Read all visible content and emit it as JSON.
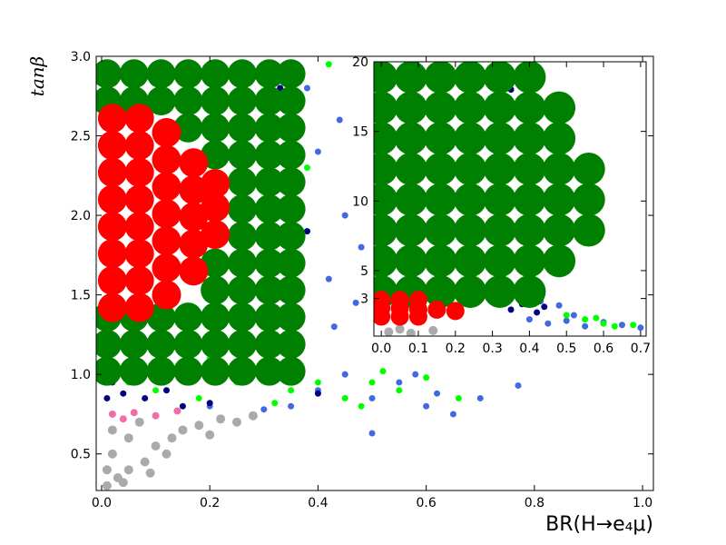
{
  "chart_data": [
    {
      "type": "scatter",
      "xlabel": "BR(H→e₄μ)",
      "ylabel": "tanβ",
      "xlim": [
        -0.01,
        1.02
      ],
      "ylim": [
        0.27,
        3.0
      ],
      "xticks": [
        {
          "value": 0.0,
          "label": "0.0"
        },
        {
          "value": 0.2,
          "label": "0.2"
        },
        {
          "value": 0.4,
          "label": "0.4"
        },
        {
          "value": 0.6,
          "label": "0.6"
        },
        {
          "value": 0.8,
          "label": "0.8"
        },
        {
          "value": 1.0,
          "label": "1.0"
        }
      ],
      "yticks": [
        0.5,
        {
          "value": 1.0,
          "label": "1.0"
        },
        1.5,
        {
          "value": 2.0,
          "label": "2.0"
        },
        2.5,
        {
          "value": 3.0,
          "label": "3.0"
        }
      ],
      "series": [
        {
          "color": "#aaaaaa",
          "x": [
            0.01,
            0.03,
            0.05,
            0.02,
            0.08,
            0.1,
            0.05,
            0.13,
            0.15,
            0.18,
            0.22,
            0.25,
            0.2,
            0.12,
            0.02,
            0.07,
            0.28,
            0.01,
            0.04,
            0.09
          ],
          "y": [
            0.3,
            0.35,
            0.4,
            0.5,
            0.45,
            0.55,
            0.6,
            0.6,
            0.65,
            0.68,
            0.72,
            0.7,
            0.62,
            0.5,
            0.65,
            0.7,
            0.74,
            0.4,
            0.32,
            0.38
          ]
        },
        {
          "color": "#ee6fa8",
          "x": [
            0.02,
            0.06,
            0.1,
            0.14,
            0.04
          ],
          "y": [
            0.75,
            0.76,
            0.74,
            0.77,
            0.72
          ]
        },
        {
          "color": "#4169e1",
          "x": [
            0.35,
            0.4,
            0.45,
            0.5,
            0.55,
            0.6,
            0.65,
            0.7,
            0.77,
            0.5,
            0.42,
            0.45,
            0.4,
            0.43,
            0.38,
            0.44,
            0.48,
            0.3,
            0.2,
            0.58,
            0.62,
            0.36,
            0.47
          ],
          "y": [
            0.8,
            0.9,
            1.0,
            0.85,
            0.95,
            0.8,
            0.75,
            0.85,
            0.93,
            0.63,
            1.6,
            2.0,
            2.4,
            1.3,
            2.8,
            2.6,
            1.8,
            0.78,
            0.8,
            1.0,
            0.88,
            1.9,
            1.45
          ]
        },
        {
          "color": "#000080",
          "x": [
            0.01,
            0.04,
            0.08,
            0.12,
            0.15,
            0.33,
            0.35,
            0.36,
            0.34,
            0.38,
            0.3,
            0.37,
            0.4,
            0.32,
            0.36,
            0.2,
            0.02
          ],
          "y": [
            0.85,
            0.88,
            0.85,
            0.9,
            0.8,
            2.8,
            2.5,
            2.2,
            1.7,
            1.9,
            1.2,
            1.0,
            0.88,
            2.9,
            2.95,
            0.82,
            0.95
          ]
        },
        {
          "color": "#00ff00",
          "x": [
            0.05,
            0.1,
            0.18,
            0.25,
            0.35,
            0.4,
            0.45,
            0.5,
            0.55,
            0.6,
            0.66,
            0.42,
            0.3,
            0.35,
            0.38,
            0.2,
            0.48,
            0.52,
            0.32
          ],
          "y": [
            0.95,
            0.9,
            0.85,
            0.95,
            0.9,
            0.95,
            0.85,
            0.95,
            0.9,
            0.98,
            0.85,
            2.95,
            2.9,
            1.4,
            2.3,
            1.1,
            0.8,
            1.02,
            0.82
          ]
        },
        {
          "color": "#008000",
          "x": [
            0.01,
            0.01,
            0.01,
            0.01,
            0.01,
            0.06,
            0.06,
            0.06,
            0.06,
            0.06,
            0.11,
            0.11,
            0.11,
            0.11,
            0.11,
            0.16,
            0.16,
            0.16,
            0.16,
            0.16,
            0.16,
            0.21,
            0.21,
            0.21,
            0.21,
            0.21,
            0.21,
            0.21,
            0.21,
            0.21,
            0.26,
            0.26,
            0.26,
            0.26,
            0.26,
            0.26,
            0.26,
            0.26,
            0.26,
            0.26,
            0.26,
            0.26,
            0.31,
            0.31,
            0.31,
            0.31,
            0.31,
            0.31,
            0.31,
            0.31,
            0.31,
            0.31,
            0.31,
            0.31,
            0.35,
            0.35,
            0.35,
            0.35,
            0.35,
            0.35,
            0.35,
            0.35,
            0.35,
            0.35,
            0.35,
            0.35
          ],
          "y": [
            1.02,
            1.19,
            1.36,
            2.72,
            2.89,
            1.02,
            1.19,
            1.36,
            2.72,
            2.89,
            1.02,
            1.19,
            1.36,
            2.72,
            2.89,
            1.02,
            1.19,
            1.36,
            2.55,
            2.72,
            2.89,
            1.02,
            1.19,
            1.36,
            1.53,
            1.7,
            2.38,
            2.55,
            2.72,
            2.89,
            1.02,
            1.19,
            1.36,
            1.53,
            1.7,
            1.87,
            2.04,
            2.21,
            2.38,
            2.55,
            2.72,
            2.89,
            1.02,
            1.19,
            1.36,
            1.53,
            1.7,
            1.87,
            2.04,
            2.21,
            2.38,
            2.55,
            2.72,
            2.89,
            1.02,
            1.19,
            1.36,
            1.53,
            1.7,
            1.87,
            2.04,
            2.21,
            2.38,
            2.55,
            2.72,
            2.89
          ]
        },
        {
          "color": "#ff0000",
          "x": [
            0.02,
            0.02,
            0.02,
            0.02,
            0.02,
            0.02,
            0.02,
            0.02,
            0.07,
            0.07,
            0.07,
            0.07,
            0.07,
            0.07,
            0.07,
            0.07,
            0.12,
            0.12,
            0.12,
            0.12,
            0.12,
            0.12,
            0.12,
            0.17,
            0.17,
            0.17,
            0.17,
            0.17,
            0.21,
            0.21,
            0.21
          ],
          "y": [
            1.42,
            1.59,
            1.76,
            1.93,
            2.1,
            2.27,
            2.44,
            2.61,
            1.42,
            1.59,
            1.76,
            1.93,
            2.1,
            2.27,
            2.44,
            2.61,
            1.5,
            1.67,
            1.84,
            2.01,
            2.18,
            2.35,
            2.52,
            1.65,
            1.82,
            1.99,
            2.16,
            2.33,
            1.88,
            2.05,
            2.2
          ]
        }
      ]
    },
    {
      "type": "scatter",
      "xlim": [
        -0.02,
        0.715
      ],
      "ylim": [
        0.3,
        20
      ],
      "xticks": [
        {
          "value": 0.0,
          "label": "0.0"
        },
        0.1,
        0.2,
        0.3,
        0.4,
        0.5,
        0.6,
        0.7
      ],
      "yticks": [
        3,
        5,
        10,
        15,
        20
      ],
      "series": [
        {
          "color": "#aaaaaa",
          "x": [
            0.02,
            0.08,
            0.14,
            0.05
          ],
          "y": [
            0.6,
            0.5,
            0.7,
            0.8
          ]
        },
        {
          "color": "#4169e1",
          "x": [
            0.4,
            0.45,
            0.5,
            0.55,
            0.6,
            0.65,
            0.7,
            0.48,
            0.52,
            0.43
          ],
          "y": [
            1.5,
            1.2,
            1.4,
            1.0,
            1.3,
            1.1,
            0.9,
            2.5,
            1.8,
            2.8
          ]
        },
        {
          "color": "#000080",
          "x": [
            0.35,
            0.38,
            0.42,
            0.44,
            0.4,
            0.3,
            0.35
          ],
          "y": [
            2.2,
            2.6,
            2.0,
            2.4,
            3.0,
            19.5,
            18
          ]
        },
        {
          "color": "#00ff00",
          "x": [
            0.55,
            0.6,
            0.63,
            0.68,
            0.5,
            0.58
          ],
          "y": [
            1.5,
            1.2,
            1.0,
            1.1,
            1.8,
            1.6
          ]
        },
        {
          "color": "#008000",
          "x": [
            0,
            0.08,
            0.16,
            0.24,
            0.32,
            0.4,
            0,
            0.08,
            0.16,
            0.24,
            0.32,
            0.4,
            0.48,
            0,
            0.08,
            0.16,
            0.24,
            0.32,
            0.4,
            0.48,
            0.56,
            0,
            0.08,
            0.16,
            0.24,
            0.32,
            0.4,
            0.48,
            0.56,
            0,
            0.08,
            0.16,
            0.24,
            0.32,
            0.4,
            0.48,
            0.56,
            0,
            0.08,
            0.16,
            0.24,
            0.32,
            0.4,
            0.48,
            0,
            0.08,
            0.16,
            0.24,
            0.32,
            0.4,
            0.48,
            0,
            0.08,
            0.16,
            0.24,
            0.32,
            0.4
          ],
          "y": [
            3.5,
            3.5,
            3.5,
            3.5,
            3.5,
            3.5,
            5.7,
            5.7,
            5.7,
            5.7,
            5.7,
            5.7,
            5.7,
            7.9,
            7.9,
            7.9,
            7.9,
            7.9,
            7.9,
            7.9,
            7.9,
            10.1,
            10.1,
            10.1,
            10.1,
            10.1,
            10.1,
            10.1,
            10.1,
            12.3,
            12.3,
            12.3,
            12.3,
            12.3,
            12.3,
            12.3,
            12.3,
            14.5,
            14.5,
            14.5,
            14.5,
            14.5,
            14.5,
            14.5,
            16.7,
            16.7,
            16.7,
            16.7,
            16.7,
            16.7,
            16.7,
            18.9,
            18.9,
            18.9,
            18.9,
            18.9,
            18.9
          ]
        },
        {
          "color": "#ff0000",
          "x": [
            0,
            0.05,
            0.1,
            0.15,
            0.2,
            0,
            0.05,
            0.1,
            0,
            0.05,
            0.1
          ],
          "y": [
            2.3,
            2.3,
            2.2,
            2.2,
            2.1,
            1.7,
            1.7,
            1.7,
            2.9,
            2.9,
            2.9
          ]
        }
      ]
    }
  ]
}
